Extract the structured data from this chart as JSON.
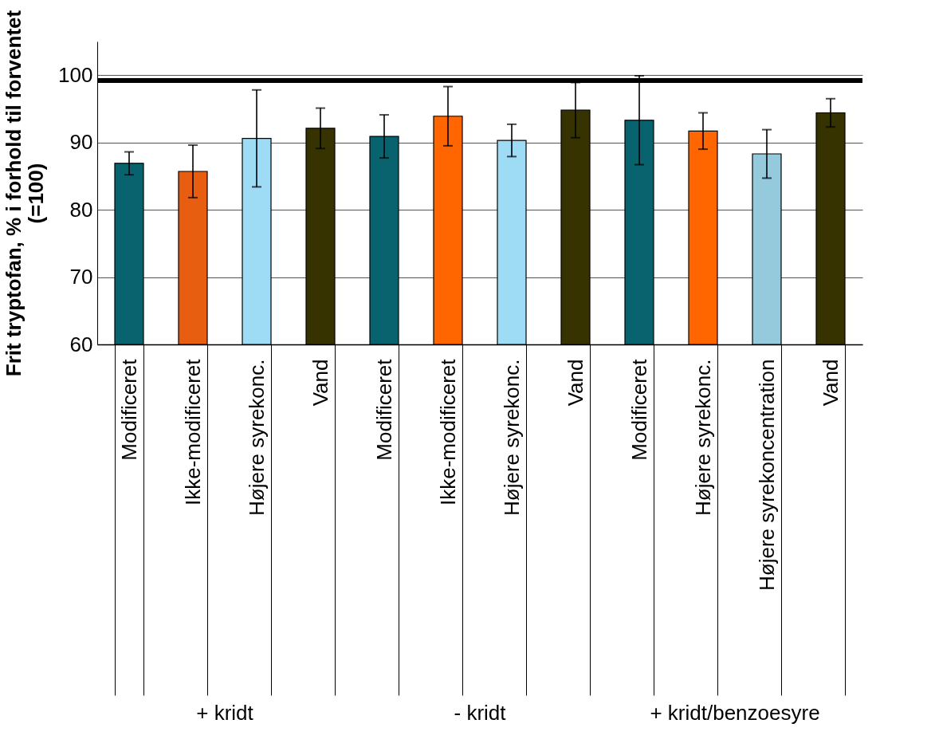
{
  "chart_data": {
    "type": "bar",
    "ylabel": "Frit tryptofan, % i forhold til forventet (=100)",
    "categories": [
      "Modificeret",
      "Ikke-modificeret",
      "Højere syrekonc.",
      "Vand",
      "Modificeret",
      "Ikke-modificeret",
      "Højere syrekonc.",
      "Vand",
      "Modificeret",
      "Højere syrekonc.",
      "Højere syrekoncentration",
      "Vand"
    ],
    "values": [
      86.9,
      85.7,
      90.6,
      92.1,
      90.9,
      93.9,
      90.3,
      94.8,
      93.3,
      91.7,
      88.3,
      94.4
    ],
    "errors": [
      1.7,
      3.9,
      7.2,
      3.0,
      3.2,
      4.4,
      2.4,
      4.1,
      6.6,
      2.7,
      3.6,
      2.1
    ],
    "colors": [
      "#09636f",
      "#e85e10",
      "#9edcf6",
      "#363300",
      "#09636f",
      "#ff6600",
      "#9edcf6",
      "#363300",
      "#09636f",
      "#ff6600",
      "#94cadc",
      "#363300"
    ],
    "ylim": [
      60,
      105
    ],
    "yticks": [
      60,
      70,
      80,
      90,
      100
    ],
    "grid": "y",
    "ref_lines": [
      {
        "axis": "y",
        "value": 99.2,
        "color": "#000000"
      }
    ],
    "annotations": [
      "+ kridt",
      "- kridt",
      "+ kridt/benzoesyre"
    ]
  }
}
